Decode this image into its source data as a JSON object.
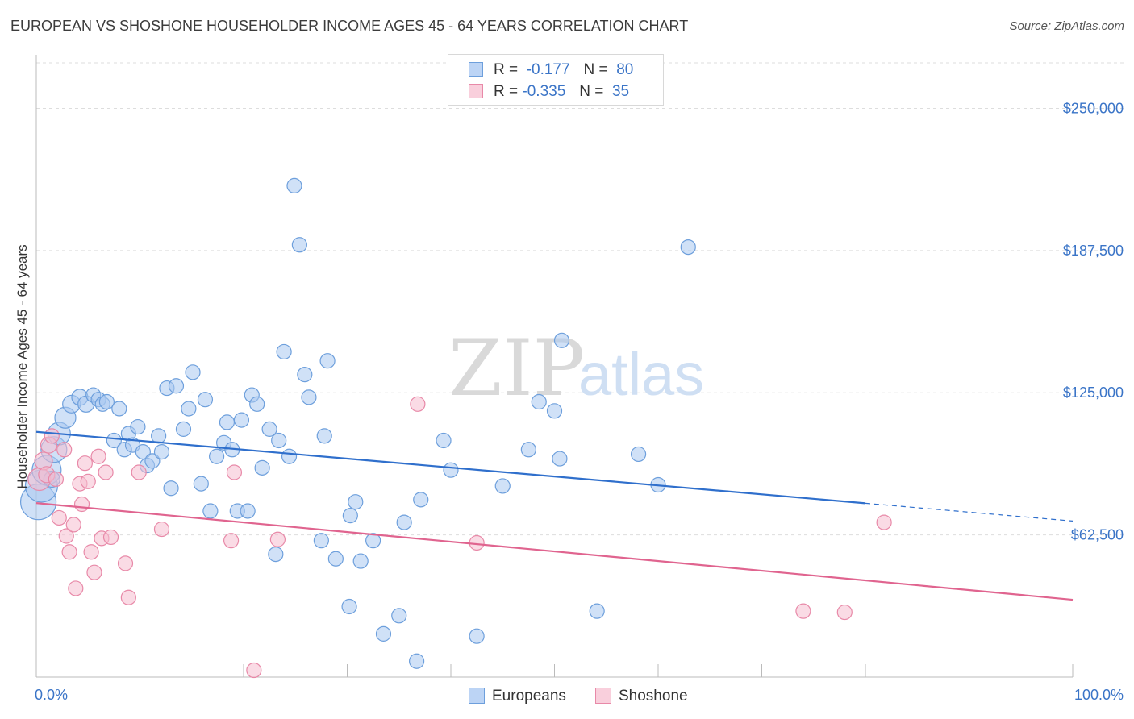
{
  "title": "EUROPEAN VS SHOSHONE HOUSEHOLDER INCOME AGES 45 - 64 YEARS CORRELATION CHART",
  "source": "Source: ZipAtlas.com",
  "watermark": {
    "zip": "ZIP",
    "atlas": "atlas"
  },
  "legend": {
    "rows": [
      {
        "r_label": "R =",
        "r_value": "-0.177",
        "n_label": "N =",
        "n_value": "80"
      },
      {
        "r_label": "R =",
        "r_value": "-0.335",
        "n_label": "N =",
        "n_value": "35"
      }
    ]
  },
  "x_axis": {
    "min_label": "0.0%",
    "max_label": "100.0%"
  },
  "colors": {
    "european_fill": "#a9c8f0",
    "european_stroke": "#6d9fdc",
    "european_line": "#2f6fcc",
    "shoshone_fill": "#f6bdcf",
    "shoshone_stroke": "#e889a8",
    "shoshone_line": "#e0648f",
    "tick_label": "#3a74c7",
    "grid": "#dddddd"
  },
  "chart_data": {
    "type": "scatter",
    "ylabel": "Householder Income Ages 45 - 64 years",
    "xlim": [
      0,
      100
    ],
    "ylim": [
      0,
      250000
    ],
    "y_ticks": [
      {
        "value": 62500,
        "label": "$62,500"
      },
      {
        "value": 125000,
        "label": "$125,000"
      },
      {
        "value": 187500,
        "label": "$187,500"
      },
      {
        "value": 250000,
        "label": "$250,000"
      }
    ],
    "series": [
      {
        "name": "Europeans",
        "trend": {
          "x0": 0,
          "y0": 107800,
          "x1": 80,
          "y1": 76400,
          "dash_to_x": 100,
          "dash_to_y": 68600
        },
        "points": [
          {
            "x": 0.2,
            "y": 77000,
            "s": 22
          },
          {
            "x": 0.5,
            "y": 84000,
            "s": 20
          },
          {
            "x": 1.0,
            "y": 91000,
            "s": 18
          },
          {
            "x": 1.5,
            "y": 87000,
            "s": 10
          },
          {
            "x": 1.7,
            "y": 100000,
            "s": 16
          },
          {
            "x": 2.2,
            "y": 107000,
            "s": 14
          },
          {
            "x": 2.8,
            "y": 114000,
            "s": 13
          },
          {
            "x": 3.4,
            "y": 120000,
            "s": 11
          },
          {
            "x": 4.2,
            "y": 123000,
            "s": 10
          },
          {
            "x": 4.8,
            "y": 120000,
            "s": 10
          },
          {
            "x": 5.5,
            "y": 124000,
            "s": 9
          },
          {
            "x": 6.0,
            "y": 122000,
            "s": 9
          },
          {
            "x": 6.4,
            "y": 120000,
            "s": 9
          },
          {
            "x": 6.8,
            "y": 121000,
            "s": 9
          },
          {
            "x": 7.5,
            "y": 104000,
            "s": 9
          },
          {
            "x": 8.0,
            "y": 118000,
            "s": 9
          },
          {
            "x": 8.5,
            "y": 100000,
            "s": 9
          },
          {
            "x": 8.9,
            "y": 107000,
            "s": 9
          },
          {
            "x": 9.3,
            "y": 102000,
            "s": 9
          },
          {
            "x": 9.8,
            "y": 110000,
            "s": 9
          },
          {
            "x": 10.3,
            "y": 99000,
            "s": 9
          },
          {
            "x": 10.7,
            "y": 93000,
            "s": 9
          },
          {
            "x": 11.2,
            "y": 95000,
            "s": 9
          },
          {
            "x": 11.8,
            "y": 106000,
            "s": 9
          },
          {
            "x": 12.1,
            "y": 99000,
            "s": 9
          },
          {
            "x": 12.6,
            "y": 127000,
            "s": 9
          },
          {
            "x": 13.0,
            "y": 83000,
            "s": 9
          },
          {
            "x": 13.5,
            "y": 128000,
            "s": 9
          },
          {
            "x": 14.2,
            "y": 109000,
            "s": 9
          },
          {
            "x": 14.7,
            "y": 118000,
            "s": 9
          },
          {
            "x": 15.1,
            "y": 134000,
            "s": 9
          },
          {
            "x": 15.9,
            "y": 85000,
            "s": 9
          },
          {
            "x": 16.3,
            "y": 122000,
            "s": 9
          },
          {
            "x": 16.8,
            "y": 73000,
            "s": 9
          },
          {
            "x": 17.4,
            "y": 97000,
            "s": 9
          },
          {
            "x": 18.1,
            "y": 103000,
            "s": 9
          },
          {
            "x": 18.4,
            "y": 112000,
            "s": 9
          },
          {
            "x": 18.9,
            "y": 100000,
            "s": 9
          },
          {
            "x": 19.4,
            "y": 73000,
            "s": 9
          },
          {
            "x": 19.8,
            "y": 113000,
            "s": 9
          },
          {
            "x": 20.4,
            "y": 73000,
            "s": 9
          },
          {
            "x": 20.8,
            "y": 124000,
            "s": 9
          },
          {
            "x": 21.3,
            "y": 120000,
            "s": 9
          },
          {
            "x": 21.8,
            "y": 92000,
            "s": 9
          },
          {
            "x": 22.5,
            "y": 109000,
            "s": 9
          },
          {
            "x": 23.1,
            "y": 54000,
            "s": 9
          },
          {
            "x": 23.4,
            "y": 104000,
            "s": 9
          },
          {
            "x": 23.9,
            "y": 143000,
            "s": 9
          },
          {
            "x": 24.4,
            "y": 97000,
            "s": 9
          },
          {
            "x": 24.9,
            "y": 216000,
            "s": 9
          },
          {
            "x": 25.4,
            "y": 190000,
            "s": 9
          },
          {
            "x": 25.9,
            "y": 133000,
            "s": 9
          },
          {
            "x": 26.3,
            "y": 123000,
            "s": 9
          },
          {
            "x": 27.5,
            "y": 60000,
            "s": 9
          },
          {
            "x": 27.8,
            "y": 106000,
            "s": 9
          },
          {
            "x": 28.1,
            "y": 139000,
            "s": 9
          },
          {
            "x": 28.9,
            "y": 52000,
            "s": 9
          },
          {
            "x": 30.2,
            "y": 31000,
            "s": 9
          },
          {
            "x": 30.3,
            "y": 71000,
            "s": 9
          },
          {
            "x": 30.8,
            "y": 77000,
            "s": 9
          },
          {
            "x": 31.3,
            "y": 51000,
            "s": 9
          },
          {
            "x": 32.5,
            "y": 60000,
            "s": 9
          },
          {
            "x": 33.5,
            "y": 19000,
            "s": 9
          },
          {
            "x": 35.0,
            "y": 27000,
            "s": 9
          },
          {
            "x": 35.5,
            "y": 68000,
            "s": 9
          },
          {
            "x": 36.7,
            "y": 7000,
            "s": 9
          },
          {
            "x": 37.1,
            "y": 78000,
            "s": 9
          },
          {
            "x": 39.3,
            "y": 104000,
            "s": 9
          },
          {
            "x": 40.0,
            "y": 91000,
            "s": 9
          },
          {
            "x": 42.5,
            "y": 18000,
            "s": 9
          },
          {
            "x": 45.0,
            "y": 84000,
            "s": 9
          },
          {
            "x": 47.5,
            "y": 100000,
            "s": 9
          },
          {
            "x": 48.5,
            "y": 121000,
            "s": 9
          },
          {
            "x": 50.0,
            "y": 117000,
            "s": 9
          },
          {
            "x": 50.5,
            "y": 96000,
            "s": 9
          },
          {
            "x": 50.7,
            "y": 148000,
            "s": 9
          },
          {
            "x": 54.1,
            "y": 29000,
            "s": 9
          },
          {
            "x": 58.1,
            "y": 98000,
            "s": 9
          },
          {
            "x": 60.0,
            "y": 84500,
            "s": 9
          },
          {
            "x": 62.9,
            "y": 189000,
            "s": 9
          }
        ]
      },
      {
        "name": "Shoshone",
        "trend": {
          "x0": 0,
          "y0": 76500,
          "x1": 100,
          "y1": 34000
        },
        "points": [
          {
            "x": 0.3,
            "y": 87000,
            "s": 14
          },
          {
            "x": 0.7,
            "y": 95000,
            "s": 11
          },
          {
            "x": 1.0,
            "y": 89000,
            "s": 10
          },
          {
            "x": 1.2,
            "y": 102000,
            "s": 10
          },
          {
            "x": 1.5,
            "y": 106000,
            "s": 9
          },
          {
            "x": 1.9,
            "y": 87000,
            "s": 9
          },
          {
            "x": 2.2,
            "y": 70000,
            "s": 9
          },
          {
            "x": 2.7,
            "y": 100000,
            "s": 9
          },
          {
            "x": 2.9,
            "y": 62000,
            "s": 9
          },
          {
            "x": 3.2,
            "y": 55000,
            "s": 9
          },
          {
            "x": 3.6,
            "y": 67000,
            "s": 9
          },
          {
            "x": 3.8,
            "y": 39000,
            "s": 9
          },
          {
            "x": 4.2,
            "y": 85000,
            "s": 9
          },
          {
            "x": 4.4,
            "y": 76000,
            "s": 9
          },
          {
            "x": 4.7,
            "y": 94000,
            "s": 9
          },
          {
            "x": 5.0,
            "y": 86000,
            "s": 9
          },
          {
            "x": 5.3,
            "y": 55000,
            "s": 9
          },
          {
            "x": 5.6,
            "y": 46000,
            "s": 9
          },
          {
            "x": 6.0,
            "y": 97000,
            "s": 9
          },
          {
            "x": 6.3,
            "y": 61000,
            "s": 9
          },
          {
            "x": 6.7,
            "y": 90000,
            "s": 9
          },
          {
            "x": 7.2,
            "y": 61500,
            "s": 9
          },
          {
            "x": 8.6,
            "y": 50000,
            "s": 9
          },
          {
            "x": 8.9,
            "y": 35000,
            "s": 9
          },
          {
            "x": 9.9,
            "y": 90000,
            "s": 9
          },
          {
            "x": 12.1,
            "y": 65000,
            "s": 9
          },
          {
            "x": 18.8,
            "y": 60000,
            "s": 9
          },
          {
            "x": 19.1,
            "y": 90000,
            "s": 9
          },
          {
            "x": 21.0,
            "y": 3000,
            "s": 9
          },
          {
            "x": 23.3,
            "y": 60500,
            "s": 9
          },
          {
            "x": 36.8,
            "y": 120000,
            "s": 9
          },
          {
            "x": 42.5,
            "y": 59000,
            "s": 9
          },
          {
            "x": 74.0,
            "y": 29000,
            "s": 9
          },
          {
            "x": 78.0,
            "y": 28500,
            "s": 9
          },
          {
            "x": 81.8,
            "y": 68000,
            "s": 9
          }
        ]
      }
    ]
  }
}
